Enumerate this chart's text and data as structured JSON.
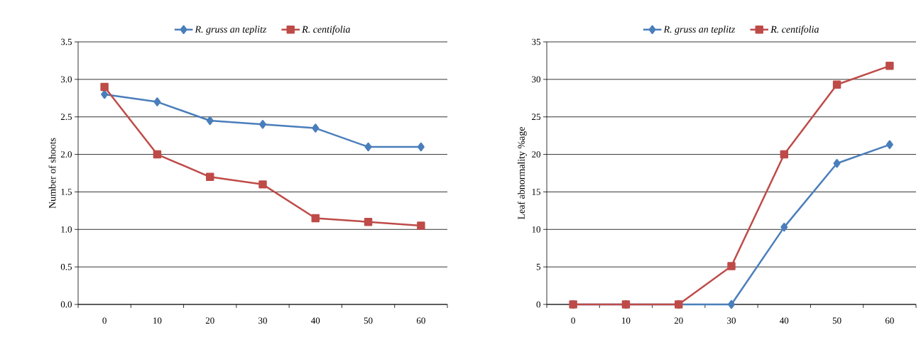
{
  "chart_data": [
    {
      "type": "line",
      "ylabel": "Number of shoots",
      "categories": [
        "0",
        "10",
        "20",
        "30",
        "40",
        "50",
        "60"
      ],
      "ylim": [
        0,
        3.5
      ],
      "yticks": [
        {
          "value": 0,
          "label": "0.0"
        },
        {
          "value": 0.5,
          "label": "0.5"
        },
        {
          "value": 1,
          "label": "1.0"
        },
        {
          "value": 1.5,
          "label": "1.5"
        },
        {
          "value": 2,
          "label": "2.0"
        },
        {
          "value": 2.5,
          "label": "2.5"
        },
        {
          "value": 3,
          "label": "3.0"
        },
        {
          "value": 3.5,
          "label": "3.5"
        }
      ],
      "grid": "y",
      "legend": "top",
      "series": [
        {
          "name": "R. gruss an teplitz",
          "color": "#4a7ebb",
          "marker": "diamond",
          "values": [
            2.8,
            2.7,
            2.45,
            2.4,
            2.35,
            2.1,
            2.1
          ]
        },
        {
          "name": "R. centifolia",
          "color": "#be4b48",
          "marker": "square",
          "values": [
            2.9,
            2.0,
            1.7,
            1.6,
            1.15,
            1.1,
            1.05
          ]
        }
      ]
    },
    {
      "type": "line",
      "ylabel": "Leaf  abnormality %age",
      "categories": [
        "0",
        "10",
        "20",
        "30",
        "40",
        "50",
        "60"
      ],
      "ylim": [
        0,
        35
      ],
      "yticks": [
        0,
        5,
        10,
        15,
        20,
        25,
        30,
        35
      ],
      "grid": "y",
      "legend": "top",
      "series": [
        {
          "name": "R. gruss an teplitz",
          "color": "#4a7ebb",
          "marker": "diamond",
          "values": [
            0,
            0,
            0,
            0,
            10.3,
            18.8,
            21.3
          ]
        },
        {
          "name": "R. centifolia",
          "color": "#be4b48",
          "marker": "square",
          "values": [
            0,
            0,
            0,
            5.1,
            20,
            29.3,
            31.8
          ]
        }
      ]
    }
  ]
}
